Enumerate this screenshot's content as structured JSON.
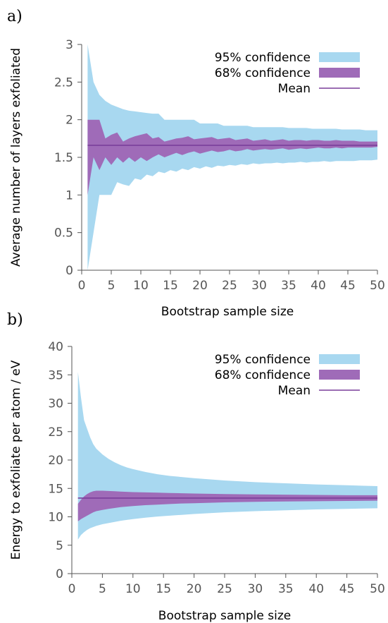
{
  "colors": {
    "ci95": "#a8d8f0",
    "ci68": "#9f6bb8",
    "mean": "#7a3e9a",
    "axis": "#555555"
  },
  "chart_data": [
    {
      "type": "area",
      "panel_label": "a)",
      "xlabel": "Bootstrap sample size",
      "ylabel": "Average number of layers exfoliated",
      "xlim": [
        0,
        50
      ],
      "ylim": [
        0,
        3
      ],
      "xticks": [
        0,
        5,
        10,
        15,
        20,
        25,
        30,
        35,
        40,
        45,
        50
      ],
      "yticks": [
        0,
        0.5,
        1,
        1.5,
        2,
        2.5,
        3
      ],
      "ytick_labels": [
        "0",
        "0.5",
        "1",
        "1.5",
        "2",
        "2.5",
        "3"
      ],
      "legend_position": "top-right",
      "x": [
        1,
        2,
        3,
        4,
        5,
        6,
        7,
        8,
        9,
        10,
        11,
        12,
        13,
        14,
        15,
        16,
        17,
        18,
        19,
        20,
        21,
        22,
        23,
        24,
        25,
        26,
        27,
        28,
        29,
        30,
        31,
        32,
        33,
        34,
        35,
        36,
        37,
        38,
        39,
        40,
        41,
        42,
        43,
        44,
        45,
        46,
        47,
        48,
        49,
        50
      ],
      "series": [
        {
          "name": "95% confidence",
          "kind": "band",
          "lower": [
            0.0,
            0.5,
            1.0,
            1.0,
            1.0,
            1.17,
            1.14,
            1.12,
            1.22,
            1.2,
            1.27,
            1.25,
            1.31,
            1.29,
            1.33,
            1.31,
            1.35,
            1.33,
            1.37,
            1.35,
            1.38,
            1.36,
            1.39,
            1.38,
            1.4,
            1.39,
            1.41,
            1.4,
            1.42,
            1.41,
            1.42,
            1.42,
            1.43,
            1.42,
            1.43,
            1.43,
            1.44,
            1.43,
            1.44,
            1.44,
            1.45,
            1.44,
            1.45,
            1.45,
            1.45,
            1.45,
            1.46,
            1.46,
            1.46,
            1.47
          ],
          "upper": [
            3.0,
            2.5,
            2.33,
            2.25,
            2.2,
            2.17,
            2.14,
            2.12,
            2.11,
            2.1,
            2.09,
            2.08,
            2.08,
            2.0,
            2.0,
            2.0,
            2.0,
            2.0,
            2.0,
            1.95,
            1.95,
            1.95,
            1.95,
            1.92,
            1.92,
            1.92,
            1.92,
            1.92,
            1.9,
            1.9,
            1.9,
            1.9,
            1.9,
            1.9,
            1.89,
            1.89,
            1.89,
            1.89,
            1.88,
            1.88,
            1.88,
            1.88,
            1.88,
            1.87,
            1.87,
            1.87,
            1.87,
            1.86,
            1.86,
            1.86
          ]
        },
        {
          "name": "68% confidence",
          "kind": "band",
          "lower": [
            1.0,
            1.5,
            1.33,
            1.5,
            1.4,
            1.5,
            1.43,
            1.5,
            1.44,
            1.5,
            1.45,
            1.5,
            1.54,
            1.5,
            1.53,
            1.56,
            1.53,
            1.56,
            1.58,
            1.55,
            1.57,
            1.59,
            1.57,
            1.58,
            1.6,
            1.58,
            1.59,
            1.61,
            1.59,
            1.6,
            1.61,
            1.6,
            1.61,
            1.62,
            1.6,
            1.61,
            1.62,
            1.61,
            1.62,
            1.63,
            1.62,
            1.62,
            1.63,
            1.62,
            1.63,
            1.63,
            1.63,
            1.63,
            1.63,
            1.64
          ],
          "upper": [
            2.0,
            2.0,
            2.0,
            1.75,
            1.8,
            1.83,
            1.71,
            1.75,
            1.78,
            1.8,
            1.82,
            1.75,
            1.77,
            1.71,
            1.73,
            1.75,
            1.76,
            1.78,
            1.74,
            1.75,
            1.76,
            1.77,
            1.74,
            1.75,
            1.76,
            1.73,
            1.74,
            1.75,
            1.72,
            1.73,
            1.74,
            1.72,
            1.73,
            1.74,
            1.72,
            1.73,
            1.73,
            1.72,
            1.73,
            1.73,
            1.72,
            1.72,
            1.73,
            1.72,
            1.72,
            1.72,
            1.71,
            1.71,
            1.71,
            1.71
          ]
        },
        {
          "name": "Mean",
          "kind": "line",
          "values": [
            1.66,
            1.66,
            1.66,
            1.66,
            1.66,
            1.66,
            1.66,
            1.66,
            1.66,
            1.66,
            1.66,
            1.66,
            1.66,
            1.66,
            1.66,
            1.66,
            1.66,
            1.66,
            1.66,
            1.66,
            1.66,
            1.66,
            1.66,
            1.66,
            1.66,
            1.66,
            1.66,
            1.66,
            1.66,
            1.66,
            1.66,
            1.66,
            1.66,
            1.66,
            1.66,
            1.66,
            1.66,
            1.66,
            1.66,
            1.66,
            1.66,
            1.66,
            1.66,
            1.66,
            1.66,
            1.66,
            1.66,
            1.66,
            1.66,
            1.66
          ]
        }
      ]
    },
    {
      "type": "area",
      "panel_label": "b)",
      "xlabel": "Bootstrap sample size",
      "ylabel": "Energy to exfoliate per atom / eV",
      "xlim": [
        0,
        50
      ],
      "ylim": [
        0,
        40
      ],
      "xticks": [
        0,
        5,
        10,
        15,
        20,
        25,
        30,
        35,
        40,
        45,
        50
      ],
      "yticks": [
        0,
        5,
        10,
        15,
        20,
        25,
        30,
        35,
        40
      ],
      "ytick_labels": [
        "0",
        "5",
        "10",
        "15",
        "20",
        "25",
        "30",
        "35",
        "40"
      ],
      "legend_position": "top-right",
      "x": [
        1,
        1.5,
        2,
        2.5,
        3,
        3.5,
        4,
        5,
        6,
        7,
        8,
        9,
        10,
        12,
        14,
        16,
        18,
        20,
        25,
        30,
        35,
        40,
        45,
        50
      ],
      "series": [
        {
          "name": "95% confidence",
          "kind": "band",
          "lower": [
            6.0,
            6.8,
            7.3,
            7.7,
            8.0,
            8.2,
            8.4,
            8.7,
            8.9,
            9.1,
            9.3,
            9.45,
            9.6,
            9.85,
            10.05,
            10.2,
            10.35,
            10.5,
            10.8,
            11.0,
            11.15,
            11.3,
            11.4,
            11.5
          ],
          "upper": [
            35.5,
            31,
            27,
            25.5,
            24,
            22.8,
            22,
            21,
            20.2,
            19.6,
            19.1,
            18.7,
            18.4,
            17.9,
            17.5,
            17.2,
            17.0,
            16.8,
            16.4,
            16.1,
            15.9,
            15.7,
            15.55,
            15.4
          ]
        },
        {
          "name": "68% confidence",
          "kind": "band",
          "lower": [
            9.2,
            9.6,
            9.9,
            10.2,
            10.5,
            10.8,
            11.0,
            11.2,
            11.4,
            11.55,
            11.7,
            11.8,
            11.9,
            12.05,
            12.15,
            12.25,
            12.35,
            12.4,
            12.55,
            12.65,
            12.7,
            12.75,
            12.8,
            12.85
          ],
          "upper": [
            12.3,
            13.0,
            13.6,
            14.0,
            14.3,
            14.5,
            14.6,
            14.6,
            14.55,
            14.5,
            14.45,
            14.4,
            14.35,
            14.3,
            14.25,
            14.2,
            14.15,
            14.1,
            14.0,
            13.95,
            13.9,
            13.85,
            13.8,
            13.8
          ]
        },
        {
          "name": "Mean",
          "kind": "line",
          "values": [
            13.3,
            13.3,
            13.3,
            13.3,
            13.3,
            13.3,
            13.3,
            13.3,
            13.3,
            13.3,
            13.3,
            13.3,
            13.3,
            13.3,
            13.3,
            13.3,
            13.3,
            13.3,
            13.3,
            13.3,
            13.3,
            13.3,
            13.3,
            13.3
          ]
        }
      ]
    }
  ]
}
